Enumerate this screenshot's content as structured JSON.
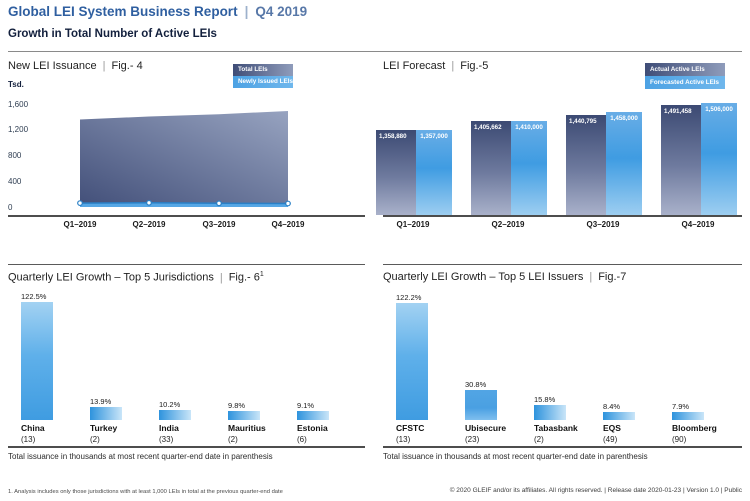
{
  "ui": {
    "pipe": "|"
  },
  "header": {
    "title": "Global LEI System Business Report",
    "period": "Q4 2019",
    "subtitle": "Growth in Total Number of Active LEIs"
  },
  "chart_data": [
    {
      "type": "area",
      "title": "New LEI Issuance",
      "fig_label": "Fig.- 4",
      "ylabel": "Tsd.",
      "unit": "thousands",
      "categories": [
        "Q1–2019",
        "Q2–2019",
        "Q3–2019",
        "Q4–2019"
      ],
      "series": [
        {
          "name": "Total LEIs",
          "values": [
            1358.9,
            1405.7,
            1440.8,
            1491.5
          ]
        },
        {
          "name": "Newly Issued LEIs",
          "values": [
            60,
            65,
            58,
            55
          ],
          "note": "estimated from chart band"
        }
      ],
      "yticks": [
        {
          "label": "1,600",
          "value": 1600
        },
        {
          "label": "1,200",
          "value": 1200
        },
        {
          "label": "800",
          "value": 800
        },
        {
          "label": "400",
          "value": 400
        },
        {
          "label": "0",
          "value": 0
        }
      ],
      "ylim": [
        0,
        1700
      ],
      "legend_position": "top-right"
    },
    {
      "type": "bar",
      "title": "LEI Forecast",
      "fig_label": "Fig.-5",
      "categories": [
        "Q1–2019",
        "Q2–2019",
        "Q3–2019",
        "Q4–2019"
      ],
      "series": [
        {
          "name": "Actual Active LEIs",
          "values": [
            1358880,
            1405662,
            1440795,
            1491458
          ],
          "labels": [
            "1,358,880",
            "1,405,662",
            "1,440,795",
            "1,491,458"
          ]
        },
        {
          "name": "Forecasted Active LEIs",
          "values": [
            1357000,
            1410000,
            1458000,
            1506000
          ],
          "labels": [
            "1,357,000",
            "1,410,000",
            "1,458,000",
            "1,506,000"
          ]
        }
      ],
      "legend_position": "top-right"
    },
    {
      "type": "bar",
      "title": "Quarterly LEI Growth – Top 5 Jurisdictions",
      "fig_label": "Fig.- 6",
      "footnote_marker": "1",
      "categories": [
        "China",
        "Turkey",
        "India",
        "Mauritius",
        "Estonia"
      ],
      "counts": [
        "(13)",
        "(2)",
        "(33)",
        "(2)",
        "(6)"
      ],
      "values": [
        122.5,
        13.9,
        10.2,
        9.8,
        9.1
      ],
      "labels": [
        "122.5%",
        "13.9%",
        "10.2%",
        "9.8%",
        "9.1%"
      ],
      "caption": "Total issuance in thousands at most recent quarter-end date in parenthesis"
    },
    {
      "type": "bar",
      "title": "Quarterly LEI Growth – Top 5 LEI Issuers",
      "fig_label": "Fig.-7",
      "categories": [
        "CFSTC",
        "Ubisecure",
        "Tabasbank",
        "EQS",
        "Bloomberg"
      ],
      "counts": [
        "(13)",
        "(23)",
        "(2)",
        "(49)",
        "(90)"
      ],
      "values": [
        122.2,
        30.8,
        15.8,
        8.4,
        7.9
      ],
      "labels": [
        "122.2%",
        "30.8%",
        "15.8%",
        "8.4%",
        "7.9%"
      ],
      "caption": "Total issuance in thousands at most recent quarter-end date in parenthesis"
    }
  ],
  "footer": {
    "footnote": "1. Analysis includes only those jurisdictions with at least 1,000 LEIs in total at the previous quarter-end date",
    "copyright": "© 2020 GLEIF and/or its affiliates. All rights reserved.  |  Release date 2020-01-23  |  Version 1.0  |  Public"
  },
  "colors": {
    "title_blue": "#2f5fa0",
    "navy": "#13203d",
    "dark_series_top": "#3c4a73",
    "dark_series_bottom": "#a9b1ca",
    "light_blue": "#4aa0e3",
    "light_blue_pale": "#a6d2f2",
    "growth_bar_blue": "#3e9be0"
  }
}
